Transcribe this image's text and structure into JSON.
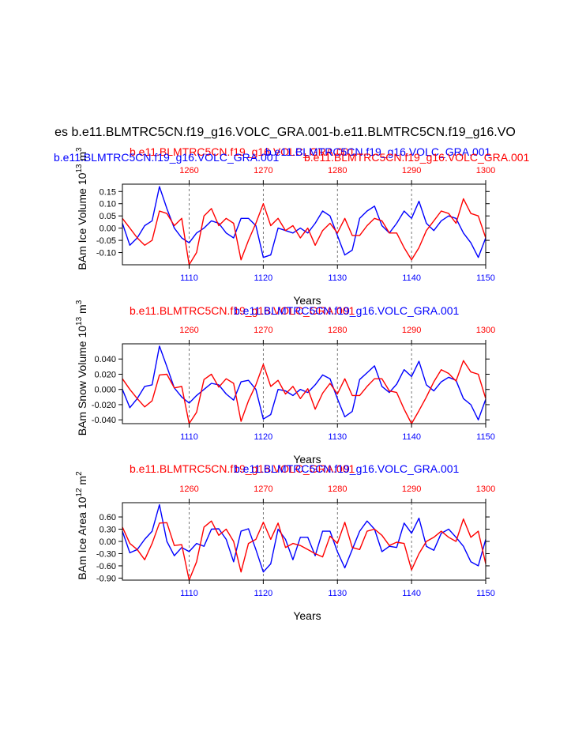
{
  "figure": {
    "main_title": "es b.e11.BLMTRC5CN.f19_g16.VOLC_GRA.001-b.e11.BLMTRC5CN.f19_g16.VO",
    "header_blue": "b.e11.BLMTRC5CN.f19_g16.VOLC_GRA.001",
    "header_red": "b.e11.BLMTRC5CN.f19_g16.VOLC_GRA.001",
    "header_red_2": "b.e11.BLMTRC5CN.f19_g16.VOLC_GRA.001",
    "header_blue_2": "b.e11.BLMTRC5CN.f19_g16.VOLC_GRA.001",
    "colors": {
      "series_blue": "#0000ff",
      "series_red": "#ff0000",
      "axis": "#000000",
      "grid": "#555555"
    }
  },
  "chart_data": [
    {
      "type": "line",
      "title_red": "b.e11.BLMTRC5CN.f19_g16.VOLC_GRA.001",
      "title_blue": "b.e11.BLMTRC5CN.f19_g16.VOLC_GRA.001",
      "ylabel": "BAm Ice Volume 10",
      "ylabel_exp": "13",
      "ylabel_unit": " m",
      "ylabel_unit_exp": "3",
      "xlabel": "Years",
      "ylim": [
        -0.15,
        0.18
      ],
      "yticks": [
        0.15,
        0.1,
        0.05,
        0.0,
        -0.05,
        -0.1
      ],
      "ytick_labels": [
        "0.15",
        "0.10",
        "0.05",
        "0.00",
        "-0.05",
        "-0.10"
      ],
      "bottom_axis": {
        "range": [
          1101,
          1150
        ],
        "ticks": [
          1110,
          1120,
          1130,
          1140,
          1150
        ],
        "labels": [
          "1110",
          "1120",
          "1130",
          "1140",
          "1150"
        ]
      },
      "top_axis": {
        "range": [
          1251,
          1300
        ],
        "ticks": [
          1260,
          1270,
          1280,
          1290,
          1300
        ],
        "labels": [
          "1260",
          "1270",
          "1280",
          "1290",
          "1300"
        ]
      },
      "vgrid_dashed": true,
      "series": [
        {
          "name": "b.e11.BLMTRC5CN.f19_g16.VOLC_GRA.001",
          "axis": "bottom",
          "color": "#0000ff",
          "x": [
            1101,
            1102,
            1103,
            1104,
            1105,
            1106,
            1107,
            1108,
            1109,
            1110,
            1111,
            1112,
            1113,
            1114,
            1115,
            1116,
            1117,
            1118,
            1119,
            1120,
            1121,
            1122,
            1123,
            1124,
            1125,
            1126,
            1127,
            1128,
            1129,
            1130,
            1131,
            1132,
            1133,
            1134,
            1135,
            1136,
            1137,
            1138,
            1139,
            1140,
            1141,
            1142,
            1143,
            1144,
            1145,
            1146,
            1147,
            1148,
            1149,
            1150
          ],
          "y": [
            0.02,
            -0.07,
            -0.04,
            0.01,
            0.03,
            0.17,
            0.08,
            0.0,
            -0.04,
            -0.06,
            -0.02,
            0.0,
            0.03,
            0.02,
            -0.02,
            -0.04,
            0.04,
            0.04,
            0.01,
            -0.12,
            -0.11,
            0.0,
            -0.01,
            -0.02,
            0.0,
            -0.02,
            0.02,
            0.07,
            0.05,
            -0.03,
            -0.11,
            -0.09,
            0.04,
            0.07,
            0.09,
            0.01,
            -0.02,
            0.02,
            0.07,
            0.04,
            0.11,
            0.02,
            -0.01,
            0.03,
            0.05,
            0.04,
            -0.02,
            -0.06,
            -0.12,
            -0.04
          ]
        },
        {
          "name": "b.e11.BLMTRC5CN.f19_g16.VOLC_GRA.001",
          "axis": "top",
          "color": "#ff0000",
          "x": [
            1251,
            1252,
            1253,
            1254,
            1255,
            1256,
            1257,
            1258,
            1259,
            1260,
            1261,
            1262,
            1263,
            1264,
            1265,
            1266,
            1267,
            1268,
            1269,
            1270,
            1271,
            1272,
            1273,
            1274,
            1275,
            1276,
            1277,
            1278,
            1279,
            1280,
            1281,
            1282,
            1283,
            1284,
            1285,
            1286,
            1287,
            1288,
            1289,
            1290,
            1291,
            1292,
            1293,
            1294,
            1295,
            1296,
            1297,
            1298,
            1299,
            1300
          ],
          "y": [
            0.04,
            0.0,
            -0.04,
            -0.07,
            -0.05,
            0.07,
            0.06,
            0.01,
            0.04,
            -0.15,
            -0.1,
            0.05,
            0.08,
            0.01,
            0.04,
            0.02,
            -0.13,
            -0.05,
            0.02,
            0.1,
            0.01,
            0.04,
            -0.01,
            0.01,
            -0.04,
            0.0,
            -0.07,
            -0.01,
            0.02,
            -0.02,
            0.04,
            -0.03,
            -0.03,
            0.01,
            0.04,
            0.03,
            -0.02,
            -0.02,
            -0.08,
            -0.13,
            -0.08,
            -0.01,
            0.03,
            0.07,
            0.06,
            0.02,
            0.12,
            0.06,
            0.05,
            -0.04
          ]
        }
      ]
    },
    {
      "type": "line",
      "title_red": "b.e11.BLMTRC5CN.f19_g16.VOLC_GRA.001",
      "title_blue": "b.e11.BLMTRC5CN.f19_g16.VOLC_GRA.001",
      "ylabel": "BAm Snow Volume 10",
      "ylabel_exp": "13",
      "ylabel_unit": " m",
      "ylabel_unit_exp": "3",
      "xlabel": "Years",
      "ylim": [
        -0.045,
        0.06
      ],
      "yticks": [
        0.04,
        0.02,
        0.0,
        -0.02,
        -0.04
      ],
      "ytick_labels": [
        "0.040",
        "0.020",
        "0.000",
        "-0.020",
        "-0.040"
      ],
      "bottom_axis": {
        "range": [
          1101,
          1150
        ],
        "ticks": [
          1110,
          1120,
          1130,
          1140,
          1150
        ],
        "labels": [
          "1110",
          "1120",
          "1130",
          "1140",
          "1150"
        ]
      },
      "top_axis": {
        "range": [
          1251,
          1300
        ],
        "ticks": [
          1260,
          1270,
          1280,
          1290,
          1300
        ],
        "labels": [
          "1260",
          "1270",
          "1280",
          "1290",
          "1300"
        ]
      },
      "vgrid_dashed": true,
      "series": [
        {
          "name": "b.e11.BLMTRC5CN.f19_g16.VOLC_GRA.001",
          "axis": "bottom",
          "color": "#0000ff",
          "x": [
            1101,
            1102,
            1103,
            1104,
            1105,
            1106,
            1107,
            1108,
            1109,
            1110,
            1111,
            1112,
            1113,
            1114,
            1115,
            1116,
            1117,
            1118,
            1119,
            1120,
            1121,
            1122,
            1123,
            1124,
            1125,
            1126,
            1127,
            1128,
            1129,
            1130,
            1131,
            1132,
            1133,
            1134,
            1135,
            1136,
            1137,
            1138,
            1139,
            1140,
            1141,
            1142,
            1143,
            1144,
            1145,
            1146,
            1147,
            1148,
            1149,
            1150
          ],
          "y": [
            0.0,
            -0.024,
            -0.012,
            0.004,
            0.006,
            0.057,
            0.03,
            0.002,
            -0.01,
            -0.018,
            -0.008,
            0.0,
            0.008,
            0.006,
            -0.006,
            -0.014,
            0.01,
            0.012,
            0.0,
            -0.039,
            -0.033,
            0.0,
            -0.002,
            -0.008,
            0.0,
            -0.004,
            0.006,
            0.019,
            0.014,
            -0.012,
            -0.036,
            -0.029,
            0.013,
            0.022,
            0.031,
            0.004,
            -0.004,
            0.007,
            0.026,
            0.017,
            0.037,
            0.006,
            -0.002,
            0.01,
            0.016,
            0.012,
            -0.012,
            -0.02,
            -0.04,
            -0.013
          ]
        },
        {
          "name": "b.e11.BLMTRC5CN.f19_g16.VOLC_GRA.001",
          "axis": "top",
          "color": "#ff0000",
          "x": [
            1251,
            1252,
            1253,
            1254,
            1255,
            1256,
            1257,
            1258,
            1259,
            1260,
            1261,
            1262,
            1263,
            1264,
            1265,
            1266,
            1267,
            1268,
            1269,
            1270,
            1271,
            1272,
            1273,
            1274,
            1275,
            1276,
            1277,
            1278,
            1279,
            1280,
            1281,
            1282,
            1283,
            1284,
            1285,
            1286,
            1287,
            1288,
            1289,
            1290,
            1291,
            1292,
            1293,
            1294,
            1295,
            1296,
            1297,
            1298,
            1299,
            1300
          ],
          "y": [
            0.014,
            0.0,
            -0.012,
            -0.023,
            -0.015,
            0.019,
            0.02,
            0.002,
            0.004,
            -0.045,
            -0.03,
            0.013,
            0.02,
            0.003,
            0.014,
            0.008,
            -0.042,
            -0.015,
            0.006,
            0.033,
            0.004,
            0.012,
            -0.006,
            0.004,
            -0.012,
            0.001,
            -0.026,
            -0.005,
            0.008,
            -0.006,
            0.014,
            -0.008,
            -0.008,
            0.004,
            0.014,
            0.014,
            -0.002,
            -0.004,
            -0.026,
            -0.045,
            -0.028,
            -0.01,
            0.01,
            0.026,
            0.021,
            0.011,
            0.038,
            0.023,
            0.02,
            -0.012
          ]
        }
      ]
    },
    {
      "type": "line",
      "title_red": "b.e11.BLMTRC5CN.f19_g16.VOLC_GRA.001",
      "title_blue": "b.e11.BLMTRC5CN.f19_g16.VOLC_GRA.001",
      "ylabel": "BAm Ice Area 10",
      "ylabel_exp": "12",
      "ylabel_unit": " m",
      "ylabel_unit_exp": "2",
      "xlabel": "Years",
      "ylim": [
        -0.95,
        0.95
      ],
      "yticks": [
        0.6,
        0.3,
        0.0,
        -0.3,
        -0.6,
        -0.9
      ],
      "ytick_labels": [
        "0.60",
        "0.30",
        "0.00",
        "-0.30",
        "-0.60",
        "-0.90"
      ],
      "bottom_axis": {
        "range": [
          1101,
          1150
        ],
        "ticks": [
          1110,
          1120,
          1130,
          1140,
          1150
        ],
        "labels": [
          "1110",
          "1120",
          "1130",
          "1140",
          "1150"
        ]
      },
      "top_axis": {
        "range": [
          1251,
          1300
        ],
        "ticks": [
          1260,
          1270,
          1280,
          1290,
          1300
        ],
        "labels": [
          "1260",
          "1270",
          "1280",
          "1290",
          "1300"
        ]
      },
      "vgrid_dashed": true,
      "series": [
        {
          "name": "b.e11.BLMTRC5CN.f19_g16.VOLC_GRA.001",
          "axis": "bottom",
          "color": "#0000ff",
          "x": [
            1101,
            1102,
            1103,
            1104,
            1105,
            1106,
            1107,
            1108,
            1109,
            1110,
            1111,
            1112,
            1113,
            1114,
            1115,
            1116,
            1117,
            1118,
            1119,
            1120,
            1121,
            1122,
            1123,
            1124,
            1125,
            1126,
            1127,
            1128,
            1129,
            1130,
            1131,
            1132,
            1133,
            1134,
            1135,
            1136,
            1137,
            1138,
            1139,
            1140,
            1141,
            1142,
            1143,
            1144,
            1145,
            1146,
            1147,
            1148,
            1149,
            1150
          ],
          "y": [
            0.25,
            -0.28,
            -0.2,
            0.05,
            0.25,
            0.9,
            0.0,
            -0.35,
            -0.15,
            -0.25,
            -0.05,
            -0.12,
            0.3,
            0.31,
            0.05,
            -0.5,
            0.25,
            0.31,
            -0.2,
            -0.75,
            -0.55,
            0.3,
            0.05,
            -0.45,
            0.1,
            0.1,
            -0.35,
            0.25,
            0.25,
            -0.25,
            -0.65,
            -0.2,
            0.25,
            0.5,
            0.3,
            -0.25,
            -0.12,
            -0.15,
            0.45,
            0.2,
            0.57,
            -0.12,
            -0.22,
            0.2,
            0.3,
            0.1,
            -0.12,
            -0.5,
            -0.6,
            0.05
          ]
        },
        {
          "name": "b.e11.BLMTRC5CN.f19_g16.VOLC_GRA.001",
          "axis": "top",
          "color": "#ff0000",
          "x": [
            1251,
            1252,
            1253,
            1254,
            1255,
            1256,
            1257,
            1258,
            1259,
            1260,
            1261,
            1262,
            1263,
            1264,
            1265,
            1266,
            1267,
            1268,
            1269,
            1270,
            1271,
            1272,
            1273,
            1274,
            1275,
            1276,
            1277,
            1278,
            1279,
            1280,
            1281,
            1282,
            1283,
            1284,
            1285,
            1286,
            1287,
            1288,
            1289,
            1290,
            1291,
            1292,
            1293,
            1294,
            1295,
            1296,
            1297,
            1298,
            1299,
            1300
          ],
          "y": [
            0.35,
            -0.05,
            -0.2,
            -0.45,
            -0.05,
            0.45,
            0.46,
            -0.1,
            -0.08,
            -0.95,
            -0.5,
            0.35,
            0.5,
            0.15,
            0.3,
            0.0,
            -0.75,
            -0.05,
            0.05,
            0.47,
            0.05,
            0.45,
            -0.15,
            -0.05,
            -0.1,
            -0.2,
            -0.3,
            -0.38,
            0.13,
            -0.05,
            0.47,
            -0.15,
            -0.2,
            0.25,
            0.3,
            0.15,
            -0.1,
            -0.02,
            -0.05,
            -0.7,
            -0.3,
            0.0,
            0.1,
            0.25,
            0.1,
            0.0,
            0.55,
            0.1,
            0.25,
            -0.55
          ]
        }
      ]
    }
  ]
}
